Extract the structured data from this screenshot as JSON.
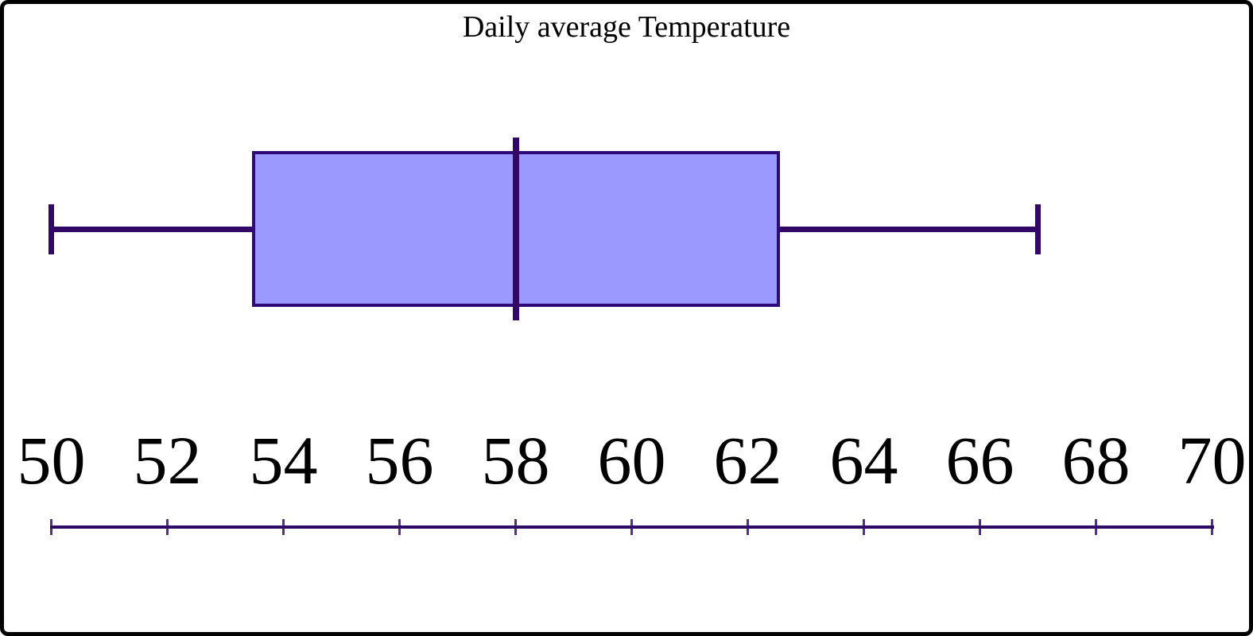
{
  "chart_data": {
    "type": "boxplot",
    "orientation": "horizontal",
    "title": "Daily average Temperature",
    "stats": {
      "min": 50,
      "q1": 53.5,
      "median": 58,
      "q3": 62.5,
      "max": 67
    },
    "axis": {
      "min": 50,
      "max": 70,
      "step": 2,
      "tick_values": [
        50,
        52,
        54,
        56,
        58,
        60,
        62,
        64,
        66,
        68,
        70
      ],
      "tick_labels": [
        "50",
        "52",
        "54",
        "56",
        "58",
        "60",
        "62",
        "64",
        "66",
        "68",
        "70"
      ]
    },
    "grid": false,
    "legend": null,
    "colors": {
      "box_fill": "#9b9afc",
      "box_border": "#2f0a77",
      "median": "#330766",
      "whisker": "#330766",
      "axis_line": "#2e0a64",
      "tick": "#5b2d88",
      "text": "#000000",
      "frame_border": "#000000",
      "background": "#ffffff"
    }
  }
}
